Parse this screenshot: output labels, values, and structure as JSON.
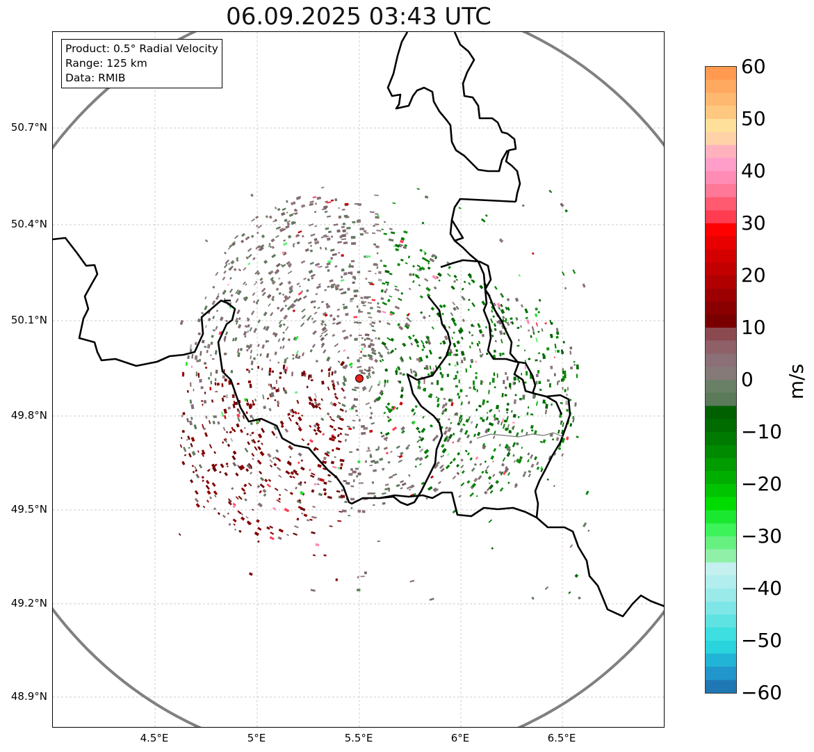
{
  "title": "06.09.2025 03:43 UTC",
  "info": {
    "product": "Product: 0.5° Radial Velocity",
    "range": "Range: 125 km",
    "data": "Data: RMIB"
  },
  "map": {
    "lat_ticks": [
      "50.7°N",
      "50.4°N",
      "50.1°N",
      "49.8°N",
      "49.5°N",
      "49.2°N",
      "48.9°N"
    ],
    "lon_ticks": [
      "4.5°E",
      "5°E",
      "5.5°E",
      "6°E",
      "6.5°E"
    ],
    "radar_site": {
      "lon": 5.5,
      "lat": 49.91
    },
    "radar_marker_color": "#e8201c",
    "range_ring_color": "#808080",
    "border_color": "#000000"
  },
  "colorbar": {
    "label": "m/s",
    "ticks": [
      "60",
      "50",
      "40",
      "30",
      "20",
      "10",
      "0",
      "−10",
      "−20",
      "−30",
      "−40",
      "−50",
      "−60"
    ],
    "min": -60,
    "max": 60,
    "colors": [
      "#1f78b4",
      "#2196cc",
      "#22b4d6",
      "#2ad4dc",
      "#3ddfe0",
      "#5fe2e2",
      "#7ee6e6",
      "#9aeaea",
      "#b2eeee",
      "#c4f0f0",
      "#90f0a8",
      "#66f080",
      "#3cf45a",
      "#1ae830",
      "#00dc00",
      "#00c400",
      "#00ae00",
      "#009c00",
      "#008a00",
      "#007a00",
      "#006c00",
      "#006000",
      "#5a7a5a",
      "#6a8066",
      "#857a78",
      "#8c7078",
      "#906068",
      "#8a4a50",
      "#7a0000",
      "#8a0000",
      "#9c0000",
      "#b00000",
      "#c20000",
      "#d40000",
      "#e80000",
      "#ff0000",
      "#ff3c50",
      "#ff5a70",
      "#ff7898",
      "#ff8cb4",
      "#ff9ec8",
      "#ffb2be",
      "#ffd2a8",
      "#ffe09a",
      "#ffc880",
      "#ffb870",
      "#ffa860",
      "#ff9a50"
    ]
  }
}
